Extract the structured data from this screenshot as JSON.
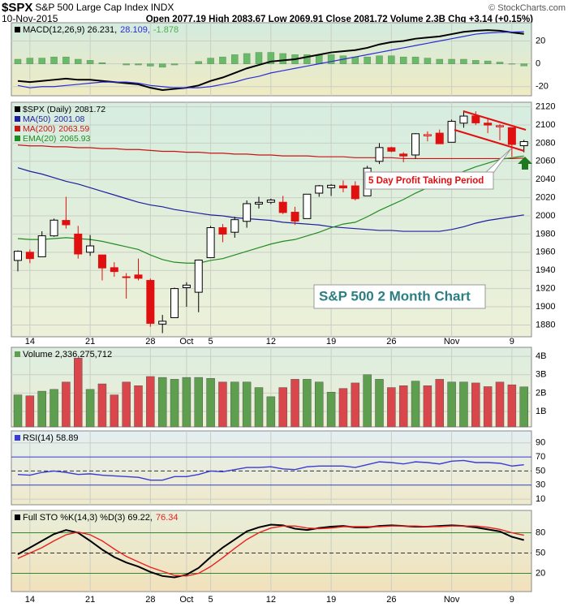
{
  "header": {
    "symbol": "$SPX",
    "name": "S&P 500 Large Cap Index",
    "exchange": "INDX",
    "copyright": "© StockCharts.com",
    "date": "10-Nov-2015",
    "quote": "Open 2077.19 High 2083.67 Low 2069.91 Close 2081.72 Volume 2.3B Chg +3.14 (+0.15%)"
  },
  "chart_data": [
    {
      "type": "candlestick",
      "name": "$SPX (Daily)",
      "categories": [
        null,
        "14",
        null,
        null,
        null,
        null,
        "21",
        null,
        null,
        null,
        null,
        "28",
        null,
        null,
        "Oct",
        null,
        "5",
        null,
        null,
        null,
        null,
        "12",
        null,
        null,
        null,
        null,
        "19",
        null,
        null,
        null,
        null,
        "26",
        null,
        null,
        null,
        null,
        "Nov",
        null,
        null,
        null,
        null,
        "9",
        null
      ],
      "open": [
        1951,
        1960,
        1955,
        1978,
        1995,
        1980,
        1960,
        1957,
        1943,
        1933,
        1935,
        1929,
        1881,
        1888,
        1921,
        1916,
        1954,
        1987,
        1982,
        1994,
        2013,
        2015,
        2015,
        2004,
        1997,
        2025,
        2031,
        2033,
        2033,
        2022,
        2060,
        2075,
        2068,
        2067,
        2088,
        2091,
        2081,
        2102,
        2110,
        2102,
        2098,
        2097,
        2077.19
      ],
      "high": [
        1962,
        1963,
        1983,
        1997,
        2021,
        1989,
        1979,
        1957,
        1949,
        1937,
        1953,
        1931,
        1891,
        1921,
        1927,
        1952,
        1989,
        1991,
        1999,
        2017,
        2021,
        2019,
        2022,
        2010,
        2024,
        2034,
        2035,
        2039,
        2038,
        2055,
        2080,
        2076,
        2070,
        2091,
        2093,
        2095,
        2106,
        2116,
        2115,
        2108,
        2101,
        2097,
        2083.67
      ],
      "low": [
        1939,
        1948,
        1955,
        1977,
        1986,
        1953,
        1956,
        1929,
        1933,
        1909,
        1929,
        1878,
        1871,
        1888,
        1900,
        1894,
        1954,
        1971,
        1976,
        1987,
        2008,
        2013,
        2002,
        1990,
        1997,
        2021,
        2022,
        2026,
        2017,
        2022,
        2057,
        2070,
        2059,
        2063,
        2082,
        2079,
        2081,
        2097,
        2100,
        2091,
        2083,
        2065,
        2069.91
      ],
      "close": [
        1961.05,
        1953.03,
        1978.09,
        1995.31,
        1990.2,
        1958.08,
        1966.97,
        1942.74,
        1938.76,
        1932.24,
        1931.34,
        1881.77,
        1884.09,
        1920.03,
        1923.82,
        1951.36,
        1987.05,
        1979.92,
        1995.83,
        2013.43,
        2014.89,
        2017.46,
        2003.69,
        1994.24,
        2023.86,
        2033.11,
        2033.66,
        2030.77,
        2018.94,
        2052.51,
        2075.15,
        2071.18,
        2065.89,
        2090.35,
        2089.41,
        2079.36,
        2104.05,
        2109.79,
        2102.31,
        2099.93,
        2099.2,
        2078.58,
        2081.72
      ],
      "color": "#000000",
      "down_color": "#e01010",
      "series": [
        {
          "name": "MA(50)",
          "color": "#1e1ea0",
          "values": [
            2053,
            2049,
            2046,
            2042,
            2038,
            2035,
            2031,
            2027,
            2023,
            2019,
            2015,
            2012,
            2010,
            2007,
            2005,
            2003,
            2001,
            2000,
            1998,
            1997,
            1996,
            1995,
            1993,
            1992,
            1991,
            1990,
            1988,
            1987,
            1986,
            1985,
            1984,
            1984,
            1983,
            1983,
            1983,
            1983,
            1985,
            1988,
            1992,
            1995,
            1997,
            1999,
            2001.08
          ]
        },
        {
          "name": "MA(200)",
          "color": "#c81414",
          "values": [
            2078,
            2077,
            2077,
            2076,
            2076,
            2075,
            2075,
            2074,
            2074,
            2073,
            2073,
            2072,
            2071,
            2071,
            2070,
            2070,
            2069,
            2069,
            2068,
            2068,
            2067,
            2067,
            2066,
            2066,
            2066,
            2065,
            2065,
            2065,
            2064,
            2064,
            2064,
            2064,
            2063,
            2063,
            2063,
            2063,
            2063,
            2063,
            2063,
            2063,
            2063,
            2063,
            2063.59
          ]
        },
        {
          "name": "EMA(20)",
          "color": "#228b22",
          "values": [
            1975,
            1974,
            1974,
            1975,
            1976,
            1975,
            1974,
            1972,
            1969,
            1966,
            1963,
            1957,
            1952,
            1949,
            1948,
            1948,
            1951,
            1953,
            1957,
            1961,
            1965,
            1969,
            1972,
            1974,
            1978,
            1982,
            1987,
            1991,
            1993,
            1999,
            2006,
            2012,
            2018,
            2025,
            2031,
            2036,
            2043,
            2049,
            2054,
            2058,
            2062,
            2064,
            2065.93
          ]
        }
      ],
      "annotations": [
        "5 Day Profit Taking Period",
        "S&P 500 2 Month Chart"
      ],
      "ylim": [
        1867,
        2125
      ],
      "yticks": [
        1880,
        1900,
        1920,
        1940,
        1960,
        1980,
        2000,
        2020,
        2040,
        2060,
        2080,
        2100,
        2120
      ],
      "grid": true
    },
    {
      "type": "macd",
      "legend": [
        "MACD(12,26,9) 26.231,",
        "28.109,",
        "-1.878"
      ],
      "series": [
        {
          "kind": "line",
          "color": "#000000",
          "values": [
            -15,
            -16,
            -15,
            -14,
            -13,
            -14,
            -14,
            -15,
            -16,
            -17,
            -18,
            -21,
            -23,
            -22,
            -21,
            -19,
            -15,
            -12,
            -8,
            -4,
            -1,
            2,
            3,
            4,
            6,
            8,
            10,
            11,
            12,
            14,
            17,
            19,
            20,
            22,
            23,
            24,
            26,
            28,
            29,
            29.5,
            29,
            27.5,
            26.231
          ]
        },
        {
          "kind": "line",
          "color": "#2b2bd6",
          "values": [
            -19,
            -21,
            -20,
            -20,
            -19,
            -18,
            -17,
            -16,
            -16,
            -16,
            -17,
            -19,
            -20,
            -21,
            -21,
            -21,
            -20,
            -18,
            -16,
            -13,
            -11,
            -8,
            -6,
            -4,
            -2,
            0,
            2,
            4,
            6,
            8,
            10,
            12,
            14,
            16,
            18,
            20,
            22,
            24,
            26,
            27,
            27.5,
            27.8,
            28.109
          ]
        },
        {
          "kind": "bar",
          "color": "#4caf50",
          "values": [
            4,
            5,
            5,
            6,
            6,
            4,
            3,
            1,
            0,
            -1,
            -1,
            -2,
            -3,
            -1,
            0,
            2,
            5,
            6,
            8,
            9,
            10,
            10,
            9,
            8,
            8,
            8,
            8,
            7,
            6,
            6,
            7,
            7,
            6,
            6,
            5,
            4,
            4,
            4,
            3,
            2.5,
            1.5,
            -0.3,
            -1.878
          ]
        }
      ],
      "ylim": [
        -28,
        36
      ],
      "yticks": [
        -20,
        0,
        20
      ],
      "grid": true
    },
    {
      "type": "bar",
      "title": "Volume 2,336,275,712",
      "values": [
        1900000000,
        1850000000,
        2100000000,
        2200000000,
        2600000000,
        3900000000,
        2200000000,
        2500000000,
        1900000000,
        2600000000,
        2400000000,
        2900000000,
        2850000000,
        2750000000,
        2850000000,
        2850000000,
        2800000000,
        2600000000,
        2600000000,
        2600000000,
        2300000000,
        1800000000,
        2300000000,
        2750000000,
        2750000000,
        2600000000,
        2050000000,
        2250000000,
        2550000000,
        3000000000,
        2750000000,
        2300000000,
        2400000000,
        2650000000,
        2400000000,
        2750000000,
        2600000000,
        2600000000,
        2550000000,
        2350000000,
        2600000000,
        2450000000,
        2336275712
      ],
      "color": "#5e9e4f",
      "down_color": "#d9464b",
      "ylim": [
        160000000,
        4490000000
      ],
      "yticks": [
        {
          "value": 1000000000,
          "label": "1B"
        },
        {
          "value": 2000000000,
          "label": "2B"
        },
        {
          "value": 3000000000,
          "label": "3B"
        },
        {
          "value": 4000000000,
          "label": "4B"
        }
      ],
      "grid": true
    },
    {
      "type": "line",
      "title": "RSI(14) 58.89",
      "series": [
        {
          "color": "#3b3bd6",
          "values": [
            45,
            44,
            48,
            50,
            48,
            45,
            46,
            44,
            43,
            42,
            41,
            37,
            37,
            42,
            42,
            45,
            50,
            49,
            52,
            55,
            55,
            56,
            53,
            52,
            56,
            57,
            57,
            57,
            55,
            59,
            63,
            62,
            60,
            63,
            62,
            60,
            64,
            65,
            62,
            62,
            61,
            57,
            58.89
          ]
        }
      ],
      "level_color": "#3a3ad0",
      "ylim": [
        2,
        107
      ],
      "yticks": [
        90,
        70,
        50,
        30,
        10
      ],
      "grid": true
    },
    {
      "type": "line",
      "legend": [
        "Full STO %K(14,3) %D(3) 69.22,",
        "76.34"
      ],
      "categories": [
        null,
        "14",
        null,
        null,
        null,
        null,
        "21",
        null,
        null,
        null,
        null,
        "28",
        null,
        null,
        "Oct",
        null,
        "5",
        null,
        null,
        null,
        null,
        "12",
        null,
        null,
        null,
        null,
        "19",
        null,
        null,
        null,
        null,
        "26",
        null,
        null,
        null,
        null,
        "Nov",
        null,
        null,
        null,
        null,
        "9",
        null
      ],
      "series": [
        {
          "color": "#000000",
          "values": [
            48,
            58,
            68,
            78,
            84,
            80,
            68,
            55,
            44,
            36,
            30,
            22,
            16,
            14,
            18,
            28,
            44,
            58,
            70,
            82,
            88,
            92,
            91,
            86,
            84,
            87,
            89,
            90,
            88,
            88,
            90,
            91,
            90,
            89,
            89,
            90,
            91,
            90,
            88,
            85,
            82,
            74,
            69.22
          ]
        },
        {
          "color": "#e82020",
          "values": [
            42,
            50,
            58,
            68,
            77,
            81,
            77,
            68,
            56,
            45,
            37,
            29,
            23,
            17,
            16,
            20,
            30,
            43,
            57,
            70,
            80,
            87,
            90,
            90,
            87,
            86,
            87,
            89,
            89,
            89,
            89,
            90,
            90,
            90,
            89,
            89,
            90,
            90,
            90,
            88,
            85,
            80,
            76.34
          ]
        }
      ],
      "level_color": "#2e8b2e",
      "ylim": [
        -7,
        113
      ],
      "yticks": [
        80,
        50,
        20
      ],
      "grid": true
    }
  ]
}
